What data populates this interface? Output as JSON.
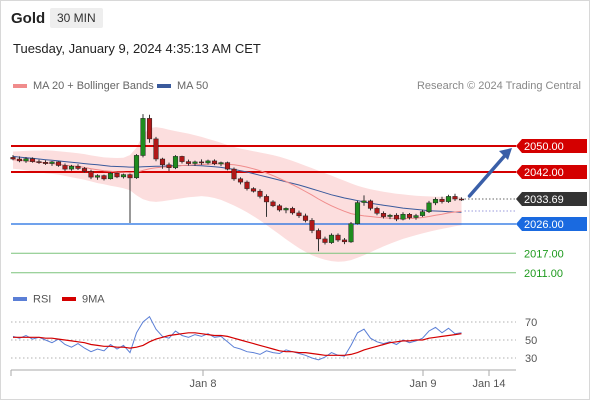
{
  "header": {
    "symbol": "Gold",
    "timeframe": "30 MIN",
    "datetime": "Tuesday, January 9, 2024 4:35:13 AM CET"
  },
  "legend": {
    "items": [
      {
        "label": "MA 20 + Bollinger Bands",
        "color": "#f08c8c"
      },
      {
        "label": "MA 50",
        "color": "#3a5a9c"
      }
    ],
    "credit": "Research © 2024 Trading Central"
  },
  "levels": [
    {
      "value": 2050.0,
      "label": "2050.00",
      "color": "#d40000",
      "style": "resistance-box"
    },
    {
      "value": 2042.0,
      "label": "2042.00",
      "color": "#d40000",
      "style": "resistance-box"
    },
    {
      "value": 2033.69,
      "label": "2033.69",
      "color": "#333333",
      "style": "last-price-box"
    },
    {
      "value": 2026.0,
      "label": "2026.00",
      "color": "#1a6ae0",
      "style": "pivot-box"
    },
    {
      "value": 2017.0,
      "label": "2017.00",
      "color": "#1d9a1d",
      "style": "support-text"
    },
    {
      "value": 2011.0,
      "label": "2011.00",
      "color": "#1d9a1d",
      "style": "support-text"
    }
  ],
  "x_axis": {
    "labels": [
      "Jan 8",
      "Jan 9",
      "Jan 14"
    ]
  },
  "rsi_panel": {
    "legend": [
      {
        "label": "RSI",
        "color": "#5b7fd6"
      },
      {
        "label": "9MA",
        "color": "#d40000"
      }
    ],
    "ticks": [
      "70",
      "50",
      "30"
    ]
  },
  "chart_data": {
    "type": "candlestick",
    "symbol": "Gold",
    "timeframe": "30 MIN",
    "ohlc": [
      [
        2046.5,
        2047.2,
        2045.6,
        2046.0
      ],
      [
        2046.0,
        2046.8,
        2045.0,
        2045.4
      ],
      [
        2045.4,
        2046.6,
        2044.8,
        2046.1
      ],
      [
        2046.1,
        2046.5,
        2044.9,
        2045.2
      ],
      [
        2045.2,
        2045.8,
        2044.5,
        2045.0
      ],
      [
        2045.0,
        2045.6,
        2044.2,
        2044.6
      ],
      [
        2044.6,
        2045.4,
        2043.9,
        2045.1
      ],
      [
        2045.1,
        2045.3,
        2043.6,
        2044.0
      ],
      [
        2044.0,
        2044.6,
        2042.3,
        2042.9
      ],
      [
        2042.9,
        2044.2,
        2042.4,
        2043.8
      ],
      [
        2043.8,
        2044.4,
        2042.6,
        2043.1
      ],
      [
        2043.1,
        2043.5,
        2041.8,
        2042.2
      ],
      [
        2042.2,
        2042.7,
        2039.8,
        2040.4
      ],
      [
        2040.4,
        2041.3,
        2039.6,
        2040.9
      ],
      [
        2040.9,
        2041.2,
        2039.4,
        2039.9
      ],
      [
        2039.9,
        2042.0,
        2039.7,
        2041.6
      ],
      [
        2041.6,
        2041.9,
        2040.1,
        2040.5
      ],
      [
        2040.5,
        2041.5,
        2040.0,
        2041.2
      ],
      [
        2041.2,
        2041.5,
        2026.3,
        2040.2
      ],
      [
        2040.2,
        2047.5,
        2039.9,
        2047.1
      ],
      [
        2047.1,
        2059.8,
        2046.5,
        2058.5
      ],
      [
        2058.5,
        2059.6,
        2051.0,
        2052.2
      ],
      [
        2052.2,
        2052.8,
        2045.3,
        2046.0
      ],
      [
        2046.0,
        2046.4,
        2043.0,
        2044.2
      ],
      [
        2044.2,
        2044.9,
        2042.3,
        2043.3
      ],
      [
        2043.3,
        2047.2,
        2042.9,
        2046.8
      ],
      [
        2046.8,
        2047.0,
        2044.6,
        2045.2
      ],
      [
        2045.2,
        2045.8,
        2044.0,
        2044.6
      ],
      [
        2044.6,
        2045.5,
        2043.9,
        2045.1
      ],
      [
        2045.1,
        2045.9,
        2044.2,
        2044.8
      ],
      [
        2044.8,
        2045.8,
        2044.3,
        2045.4
      ],
      [
        2045.4,
        2045.9,
        2044.1,
        2044.5
      ],
      [
        2044.5,
        2045.2,
        2043.8,
        2044.9
      ],
      [
        2044.9,
        2045.2,
        2042.5,
        2042.9
      ],
      [
        2042.9,
        2043.4,
        2039.3,
        2039.9
      ],
      [
        2039.9,
        2040.4,
        2038.2,
        2038.9
      ],
      [
        2038.9,
        2039.4,
        2036.3,
        2036.9
      ],
      [
        2036.9,
        2037.3,
        2035.7,
        2036.1
      ],
      [
        2036.1,
        2036.7,
        2033.9,
        2034.5
      ],
      [
        2034.5,
        2035.1,
        2028.2,
        2032.8
      ],
      [
        2032.8,
        2033.3,
        2031.2,
        2031.6
      ],
      [
        2031.6,
        2032.1,
        2029.8,
        2030.3
      ],
      [
        2030.3,
        2031.1,
        2029.3,
        2030.8
      ],
      [
        2030.8,
        2031.3,
        2028.9,
        2029.4
      ],
      [
        2029.4,
        2030.1,
        2027.9,
        2028.5
      ],
      [
        2028.5,
        2029.2,
        2026.5,
        2027.1
      ],
      [
        2027.1,
        2027.8,
        2023.2,
        2024.0
      ],
      [
        2024.0,
        2024.6,
        2017.6,
        2021.4
      ],
      [
        2021.4,
        2022.1,
        2019.7,
        2020.3
      ],
      [
        2020.3,
        2023.1,
        2019.9,
        2022.6
      ],
      [
        2022.6,
        2023.1,
        2020.5,
        2021.1
      ],
      [
        2021.1,
        2021.7,
        2019.8,
        2020.5
      ],
      [
        2020.5,
        2026.6,
        2020.2,
        2026.1
      ],
      [
        2026.1,
        2033.2,
        2025.8,
        2032.6
      ],
      [
        2032.6,
        2034.8,
        2031.6,
        2033.1
      ],
      [
        2033.1,
        2033.5,
        2030.2,
        2030.8
      ],
      [
        2030.8,
        2031.3,
        2028.7,
        2029.3
      ],
      [
        2029.3,
        2029.9,
        2027.7,
        2028.3
      ],
      [
        2028.3,
        2029.1,
        2027.5,
        2028.7
      ],
      [
        2028.7,
        2029.3,
        2026.9,
        2027.5
      ],
      [
        2027.5,
        2029.6,
        2027.1,
        2029.0
      ],
      [
        2029.0,
        2029.4,
        2027.4,
        2028.0
      ],
      [
        2028.0,
        2029.1,
        2027.3,
        2028.6
      ],
      [
        2028.6,
        2030.4,
        2028.2,
        2029.8
      ],
      [
        2029.8,
        2033.1,
        2029.4,
        2032.5
      ],
      [
        2032.5,
        2034.2,
        2031.8,
        2033.6
      ],
      [
        2033.6,
        2034.4,
        2032.3,
        2032.9
      ],
      [
        2032.9,
        2035.0,
        2032.5,
        2034.5
      ],
      [
        2034.5,
        2035.3,
        2033.1,
        2033.7
      ],
      [
        2033.7,
        2034.2,
        2033.1,
        2033.69
      ]
    ],
    "ma20": [
      2045.8,
      2045.6,
      2045.4,
      2045.2,
      2045.0,
      2044.8,
      2044.6,
      2044.4,
      2044.1,
      2043.9,
      2043.7,
      2043.4,
      2043.0,
      2042.7,
      2042.4,
      2042.2,
      2042.0,
      2041.9,
      2041.8,
      2041.9,
      2042.5,
      2043.0,
      2043.3,
      2043.5,
      2043.6,
      2043.8,
      2044.0,
      2044.1,
      2044.2,
      2044.3,
      2044.4,
      2044.5,
      2044.5,
      2044.4,
      2044.2,
      2043.9,
      2043.5,
      2043.0,
      2042.4,
      2041.7,
      2040.9,
      2040.0,
      2039.1,
      2038.1,
      2037.1,
      2036.0,
      2034.9,
      2033.7,
      2032.6,
      2031.6,
      2030.7,
      2029.9,
      2029.2,
      2028.8,
      2028.5,
      2028.3,
      2028.1,
      2027.9,
      2027.8,
      2027.7,
      2027.7,
      2027.7,
      2027.8,
      2028.0,
      2028.3,
      2028.7,
      2029.0,
      2029.4,
      2029.7,
      2029.9
    ],
    "ma50": [
      2046.8,
      2046.6,
      2046.4,
      2046.2,
      2046.0,
      2045.8,
      2045.6,
      2045.4,
      2045.2,
      2045.0,
      2044.8,
      2044.6,
      2044.4,
      2044.2,
      2044.0,
      2043.8,
      2043.7,
      2043.6,
      2043.5,
      2043.5,
      2043.6,
      2043.7,
      2043.8,
      2043.8,
      2043.9,
      2043.9,
      2044.0,
      2044.0,
      2044.0,
      2043.9,
      2043.8,
      2043.6,
      2043.4,
      2043.1,
      2042.8,
      2042.4,
      2042.0,
      2041.5,
      2041.0,
      2040.5,
      2040.0,
      2039.5,
      2039.0,
      2038.5,
      2038.0,
      2037.4,
      2036.8,
      2036.2,
      2035.6,
      2035.0,
      2034.5,
      2034.0,
      2033.6,
      2033.2,
      2032.8,
      2032.4,
      2032.1,
      2031.8,
      2031.5,
      2031.2,
      2030.9,
      2030.7,
      2030.5,
      2030.3,
      2030.1,
      2030.0,
      2029.9,
      2029.8,
      2029.7,
      2029.6
    ],
    "bollinger_upper": [
      2048.3,
      2048.4,
      2048.5,
      2048.6,
      2048.6,
      2048.7,
      2048.6,
      2048.4,
      2048.2,
      2048.0,
      2047.8,
      2047.5,
      2047.1,
      2046.8,
      2046.5,
      2046.4,
      2046.3,
      2046.4,
      2047.2,
      2049.5,
      2053.5,
      2055.5,
      2055.8,
      2055.5,
      2055.0,
      2054.6,
      2054.2,
      2053.8,
      2053.3,
      2052.8,
      2052.2,
      2051.6,
      2051.0,
      2050.3,
      2049.7,
      2049.2,
      2048.8,
      2048.4,
      2048.0,
      2047.6,
      2047.2,
      2046.7,
      2046.1,
      2045.4,
      2044.7,
      2043.9,
      2043.2,
      2042.4,
      2041.6,
      2040.9,
      2040.1,
      2039.3,
      2038.5,
      2037.8,
      2037.2,
      2036.7,
      2036.3,
      2035.9,
      2035.6,
      2035.3,
      2035.1,
      2034.9,
      2034.7,
      2034.6,
      2034.5,
      2034.4,
      2034.4,
      2034.3,
      2034.3,
      2034.3
    ],
    "bollinger_lower": [
      2043.0,
      2042.8,
      2042.5,
      2042.2,
      2041.9,
      2041.6,
      2041.4,
      2041.2,
      2040.8,
      2040.4,
      2040.0,
      2039.6,
      2039.1,
      2038.6,
      2038.2,
      2037.8,
      2037.4,
      2037.0,
      2036.4,
      2034.8,
      2033.6,
      2033.0,
      2032.8,
      2033.0,
      2033.3,
      2033.6,
      2033.9,
      2034.2,
      2034.4,
      2034.6,
      2034.4,
      2034.0,
      2033.4,
      2032.6,
      2031.7,
      2030.7,
      2029.6,
      2028.4,
      2027.1,
      2025.7,
      2024.2,
      2022.8,
      2021.3,
      2019.9,
      2018.6,
      2017.4,
      2016.4,
      2015.6,
      2015.0,
      2014.6,
      2014.4,
      2014.5,
      2014.9,
      2015.6,
      2016.4,
      2017.3,
      2018.2,
      2019.1,
      2019.9,
      2020.7,
      2021.4,
      2022.0,
      2022.6,
      2023.1,
      2023.6,
      2024.1,
      2024.5,
      2024.9,
      2025.3,
      2025.6
    ],
    "rsi": [
      54,
      52,
      55,
      51,
      53,
      50,
      47,
      51,
      45,
      42,
      46,
      41,
      37,
      40,
      38,
      45,
      40,
      44,
      36,
      58,
      70,
      76,
      62,
      54,
      52,
      60,
      55,
      53,
      56,
      54,
      57,
      53,
      54,
      48,
      42,
      40,
      37,
      36,
      34,
      38,
      36,
      35,
      39,
      37,
      35,
      33,
      30,
      28,
      31,
      36,
      33,
      32,
      44,
      58,
      62,
      52,
      48,
      46,
      48,
      45,
      50,
      47,
      49,
      52,
      60,
      64,
      58,
      63,
      57,
      58
    ],
    "rsi_ma9": [
      53,
      53,
      53,
      53,
      53,
      52,
      52,
      51,
      50,
      49,
      48,
      47,
      45,
      44,
      43,
      43,
      42,
      42,
      41,
      42,
      44,
      48,
      51,
      53,
      55,
      56,
      57,
      58,
      58,
      57,
      56,
      55,
      55,
      54,
      52,
      50,
      48,
      46,
      44,
      42,
      40,
      38,
      37,
      37,
      36,
      36,
      35,
      34,
      33,
      33,
      33,
      33,
      34,
      36,
      39,
      41,
      43,
      45,
      47,
      48,
      49,
      49,
      50,
      50,
      52,
      53,
      54,
      55,
      56,
      57
    ],
    "price_levels": {
      "resistance": [
        2050.0,
        2042.0
      ],
      "pivot": 2026.0,
      "support": [
        2017.0,
        2011.0
      ],
      "last": 2033.69
    },
    "projection": {
      "from": 2034.0,
      "to": 2050.0,
      "direction": "up"
    },
    "rsi_levels": [
      70,
      50,
      30
    ],
    "x_labels": [
      "Jan 8",
      "Jan 9",
      "Jan 14"
    ]
  }
}
